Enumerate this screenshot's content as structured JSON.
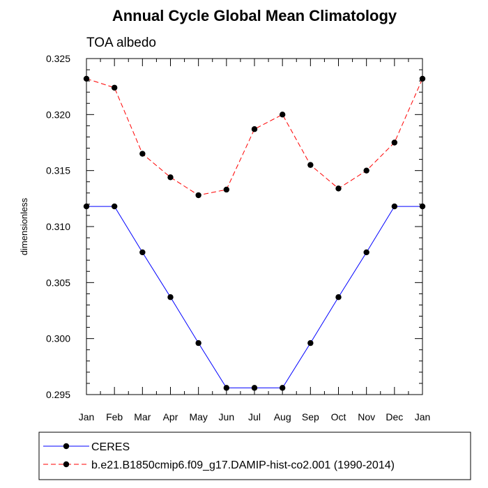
{
  "chart_data": {
    "type": "line",
    "title": "Annual Cycle Global Mean Climatology",
    "subtitle": "TOA albedo",
    "xlabel": "",
    "ylabel": "dimensionless",
    "categories": [
      "Jan",
      "Feb",
      "Mar",
      "Apr",
      "May",
      "Jun",
      "Jul",
      "Aug",
      "Sep",
      "Oct",
      "Nov",
      "Dec",
      "Jan"
    ],
    "ylim": [
      0.295,
      0.325
    ],
    "yticks": [
      "0.295",
      "0.300",
      "0.305",
      "0.310",
      "0.315",
      "0.320",
      "0.325"
    ],
    "grid": false,
    "legend_position": "bottom",
    "series": [
      {
        "name": "CERES",
        "color": "#0000ff",
        "dash": "solid",
        "values": [
          0.3118,
          0.3118,
          0.3077,
          0.3037,
          0.2996,
          0.2956,
          0.2956,
          0.2956,
          0.2996,
          0.3037,
          0.3077,
          0.3118,
          0.3118
        ]
      },
      {
        "name": "b.e21.B1850cmip6.f09_g17.DAMIP-hist-co2.001 (1990-2014)",
        "color": "#ff0000",
        "dash": "dashed",
        "values": [
          0.3232,
          0.3224,
          0.3165,
          0.3144,
          0.3128,
          0.3133,
          0.3187,
          0.32,
          0.3155,
          0.3134,
          0.315,
          0.3175,
          0.3232
        ]
      }
    ]
  }
}
